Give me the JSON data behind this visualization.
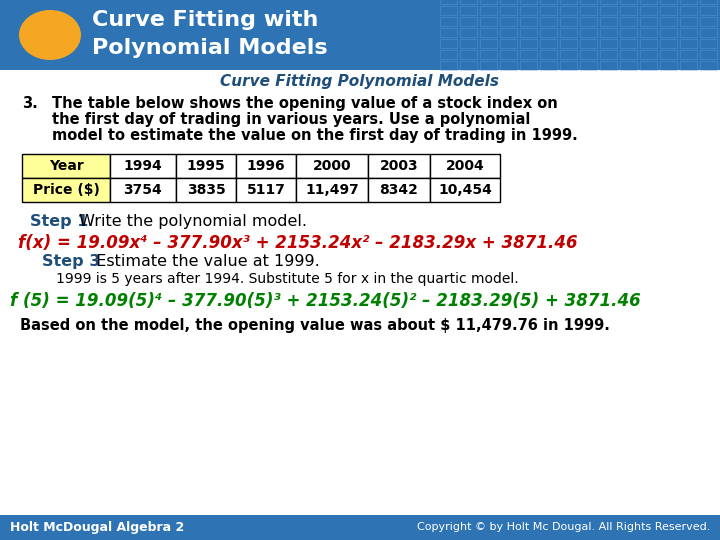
{
  "header_bg": "#2E74B5",
  "header_title1": "Curve Fitting with",
  "header_title2": "Polynomial Models",
  "header_title_color": "#FFFFFF",
  "subtitle": "Curve Fitting Polynomial Models",
  "subtitle_color": "#1F4E79",
  "body_bg": "#FFFFFF",
  "problem_number": "3.",
  "problem_text": "The table below shows the opening value of a stock index on\nthe first day of trading in various years. Use a polynomial\nmodel to estimate the value on the first day of trading in 1999.",
  "problem_color": "#000000",
  "table_headers": [
    "Year",
    "1994",
    "1995",
    "1996",
    "2000",
    "2003",
    "2004"
  ],
  "table_data": [
    "Price ($)",
    "3754",
    "3835",
    "5117",
    "11,497",
    "8342",
    "10,454"
  ],
  "table_header_bg": "#FFFF99",
  "table_border": "#000000",
  "step1_bold": "Step 1",
  "step1_text": " Write the polynomial model.",
  "step1_color": "#1F4E79",
  "formula1": "f(x) = 19.09x⁴ – 377.90x³ + 2153.24x² – 2183.29x + 3871.46",
  "formula1_color": "#C00000",
  "step3_bold": "Step 3",
  "step3_text": "  Estimate the value at 1999.",
  "step3_color": "#1F4E79",
  "note_text": "1999 is 5 years after 1994. Substitute 5 for x in the quartic model.",
  "note_color": "#000000",
  "formula2": "f (5) = 19.09(5)⁴ – 377.90(5)³ + 2153.24(5)² – 2183.29(5) + 3871.46",
  "formula2_color": "#008000",
  "conclusion": "Based on the model, the opening value was about $ 11,479.76 in 1999.",
  "conclusion_color": "#000000",
  "footer_bg": "#2E74B5",
  "footer_left": "Holt McDougal Algebra 2",
  "footer_right": "Copyright © by Holt Mc Dougal. All Rights Reserved.",
  "footer_color": "#FFFFFF"
}
